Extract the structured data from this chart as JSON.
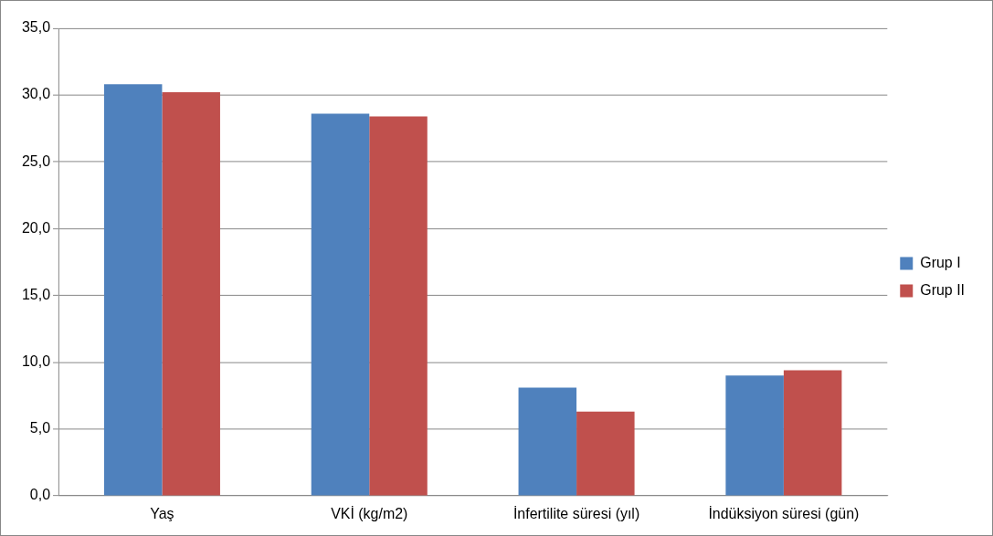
{
  "chart_data": {
    "type": "bar",
    "categories": [
      "Yaş",
      "VKİ (kg/m2)",
      "İnfertilite süresi (yıl)",
      "İndüksiyon süresi (gün)"
    ],
    "series": [
      {
        "name": "Grup I",
        "color": "#4f81bd",
        "values": [
          30.8,
          28.6,
          8.1,
          9.0
        ]
      },
      {
        "name": "Grup II",
        "color": "#c0504d",
        "values": [
          30.2,
          28.4,
          6.3,
          9.4
        ]
      }
    ],
    "ylim": [
      0,
      35
    ],
    "yticks": [
      {
        "value": 0,
        "label": "0,0"
      },
      {
        "value": 5,
        "label": "5,0"
      },
      {
        "value": 10,
        "label": "10,0"
      },
      {
        "value": 15,
        "label": "15,0"
      },
      {
        "value": 20,
        "label": "20,0"
      },
      {
        "value": 25,
        "label": "25,0"
      },
      {
        "value": 30,
        "label": "30,0"
      },
      {
        "value": 35,
        "label": "35,0"
      }
    ],
    "grid": "y",
    "legend": "right"
  }
}
